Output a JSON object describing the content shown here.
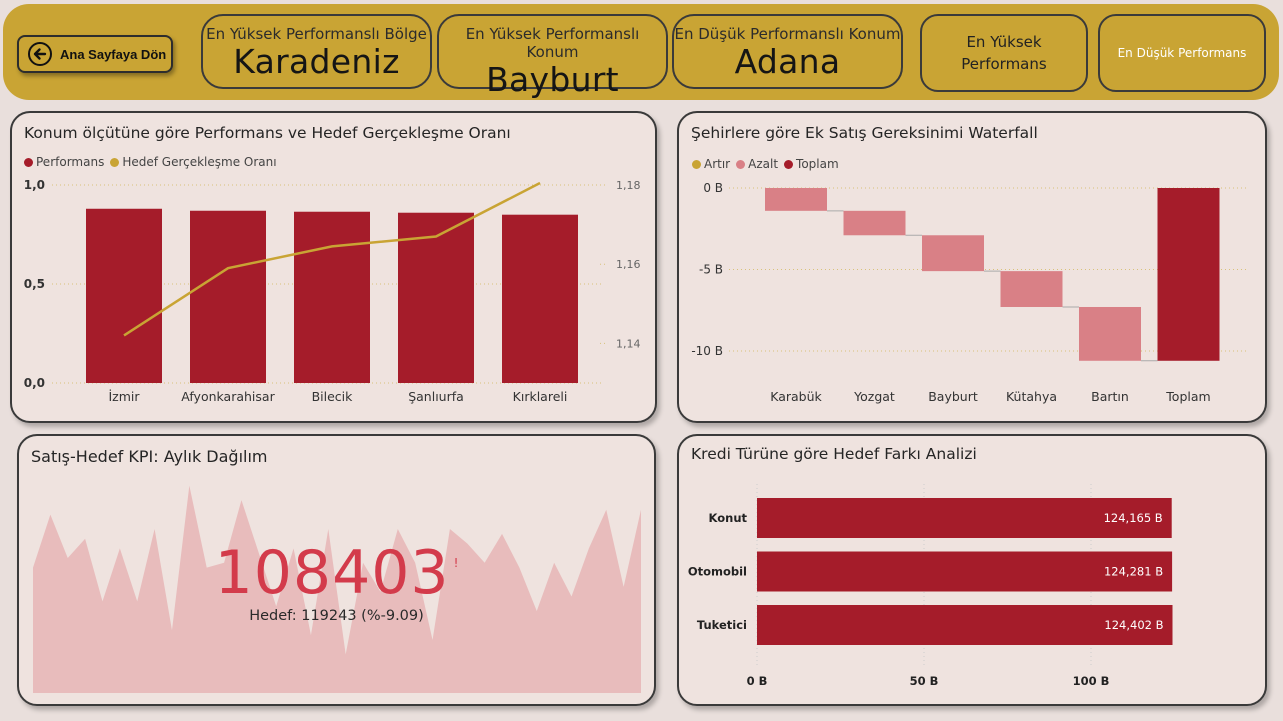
{
  "header": {
    "back_button": "Ana Sayfaya Dön",
    "kpis": [
      {
        "label": "En Yüksek Performanslı Bölge",
        "value": "Karadeniz"
      },
      {
        "label": "En Yüksek Performanslı Konum",
        "value": "Bayburt"
      },
      {
        "label": "En Düşük Performanslı Konum",
        "value": "Adana"
      }
    ],
    "nav_buttons": [
      "En Yüksek Performans",
      "En Düşük Performans"
    ]
  },
  "colors": {
    "gold": "#c9a434",
    "crimson": "#a51c2a",
    "pink": "#d98086",
    "panel": "#efe3df"
  },
  "perf_chart": {
    "title": "Konum ölçütüne göre Performans ve Hedef Gerçekleşme Oranı",
    "legend": [
      "Performans",
      "Hedef Gerçekleşme Oranı"
    ],
    "chart_data": {
      "type": "bar",
      "categories": [
        "İzmir",
        "Afyonkarahisar",
        "Bilecik",
        "Şanlıurfa",
        "Kırklareli"
      ],
      "series": [
        {
          "name": "Performans",
          "type": "bar",
          "axis": "left",
          "values": [
            0.88,
            0.87,
            0.865,
            0.86,
            0.85
          ]
        },
        {
          "name": "Hedef Gerçekleşme Oranı",
          "type": "line",
          "axis": "right",
          "values": [
            1.142,
            1.159,
            1.1645,
            1.167,
            1.1805
          ]
        }
      ],
      "ylim_left": [
        0,
        1.0
      ],
      "ylim_right": [
        1.13,
        1.18
      ],
      "left_ticks": [
        "0,0",
        "0,5",
        "1,0"
      ],
      "right_ticks": [
        "1,14",
        "1,16",
        "1,18"
      ]
    }
  },
  "waterfall": {
    "title": "Şehirlere göre Ek Satış Gereksinimi Waterfall",
    "legend": [
      "Artır",
      "Azalt",
      "Toplam"
    ],
    "chart_data": {
      "type": "bar",
      "categories": [
        "Karabük",
        "Yozgat",
        "Bayburt",
        "Kütahya",
        "Bartın",
        "Toplam"
      ],
      "deltas": [
        -1.4,
        -1.5,
        -2.2,
        -2.2,
        -3.3
      ],
      "total": -10.6,
      "ylim": [
        -11.5,
        0.5
      ],
      "ticks": [
        {
          "v": 0,
          "label": "0 B"
        },
        {
          "v": -5,
          "label": "-5 B"
        },
        {
          "v": -10,
          "label": "-10 B"
        }
      ]
    }
  },
  "kpi_card": {
    "title": "Satış-Hedef KPI: Aylık Dağılım",
    "value": "108403",
    "alert": "!",
    "goal": "Hedef: 119243 (%-9.09)",
    "chart_data": {
      "type": "area",
      "values": [
        26,
        37,
        28,
        32,
        19,
        30,
        19,
        34,
        13,
        43,
        26,
        27,
        40,
        29,
        18,
        30,
        12,
        34,
        8,
        27,
        21,
        34,
        27,
        11,
        34,
        31,
        27,
        33,
        26,
        17,
        27,
        20,
        30,
        38,
        22,
        38
      ]
    }
  },
  "credit_chart": {
    "title": "Kredi Türüne göre Hedef Farkı Analizi",
    "chart_data": {
      "type": "bar",
      "orientation": "horizontal",
      "categories": [
        "Konut",
        "Otomobil",
        "Tuketici"
      ],
      "values": [
        124.165,
        124.281,
        124.402
      ],
      "labels": [
        "124,165 B",
        "124,281 B",
        "124,402 B"
      ],
      "xlim": [
        0,
        125
      ],
      "ticks": [
        {
          "v": 0,
          "label": "0 B"
        },
        {
          "v": 50,
          "label": "50 B"
        },
        {
          "v": 100,
          "label": "100 B"
        }
      ]
    }
  }
}
